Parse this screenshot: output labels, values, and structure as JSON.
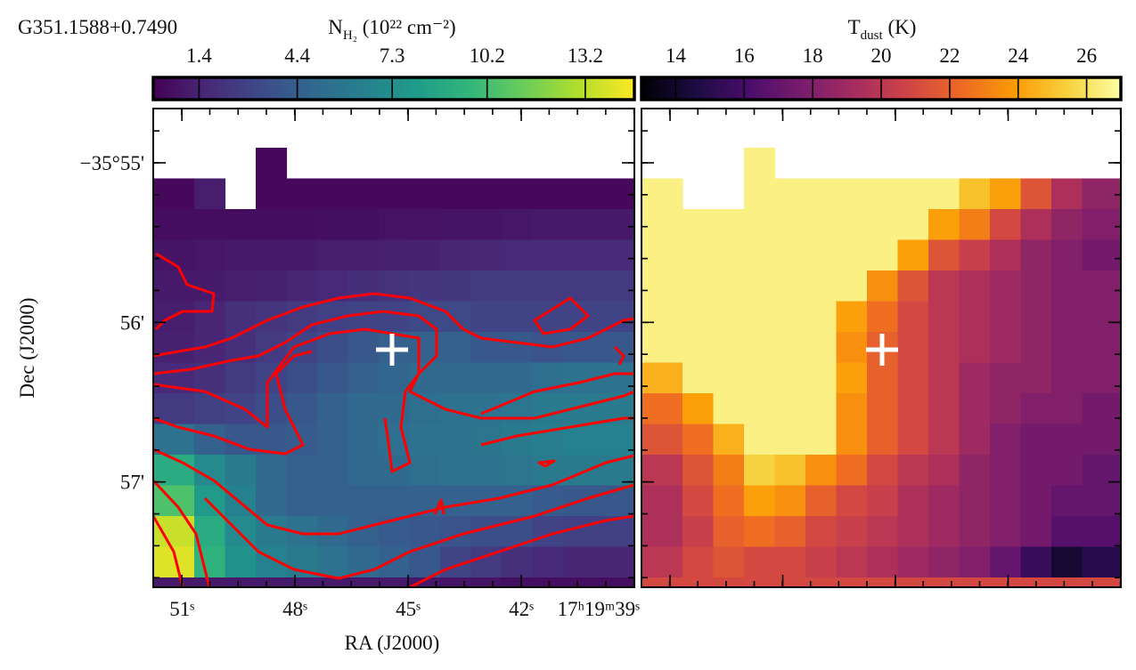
{
  "chart_data": [
    {
      "type": "heatmap",
      "title": "G351.1588+0.7490",
      "colorbar_label": {
        "base": "N",
        "sub": "H₂",
        "rest": " (10²² cm⁻²)"
      },
      "xlabel": "RA (J2000)",
      "ylabel": "Dec (J2000)",
      "xlim": [
        51.76,
        39
      ],
      "ylim": [
        57.66,
        54.66
      ],
      "xticks": [
        {
          "value": 51,
          "label": "51ˢ"
        },
        {
          "value": 48,
          "label": "48ˢ"
        },
        {
          "value": 45,
          "label": "45ˢ"
        },
        {
          "value": 42,
          "label": "42ˢ"
        },
        {
          "value": 39,
          "label": "17ʰ19ᵐ39ˢ"
        }
      ],
      "yticks": [
        {
          "value": 55,
          "label": "−35°55'"
        },
        {
          "value": 56,
          "label": "56'"
        },
        {
          "value": 57,
          "label": "57'"
        }
      ],
      "colormap": "viridis",
      "zlim": [
        0,
        14.7
      ],
      "zticks": [
        1.4,
        4.4,
        7.3,
        10.2,
        13.2
      ],
      "z": [
        [
          null,
          null,
          null,
          null,
          0.3,
          null,
          null,
          null,
          null,
          null,
          null,
          null,
          null,
          null,
          null,
          null,
          null
        ],
        [
          0.3,
          0.3,
          1.2,
          null,
          0.3,
          0.3,
          0.3,
          0.3,
          0.3,
          0.3,
          0.3,
          0.3,
          0.3,
          0.3,
          0.3,
          0.3,
          0.3
        ],
        [
          0.5,
          0.5,
          0.5,
          0.5,
          0.5,
          0.5,
          0.6,
          0.6,
          0.7,
          0.7,
          0.8,
          0.8,
          0.9,
          1,
          1,
          1,
          1
        ],
        [
          0.8,
          0.8,
          0.9,
          1,
          1,
          1.1,
          1.2,
          1.2,
          1.3,
          1.4,
          1.5,
          1.6,
          1.7,
          1.8,
          1.8,
          1.8,
          1.8
        ],
        [
          1,
          1,
          1.1,
          1.2,
          1.3,
          1.5,
          1.7,
          1.9,
          2.1,
          2.3,
          2.4,
          2.5,
          2.5,
          2.5,
          2.5,
          2.5,
          2.5
        ],
        [
          1.2,
          1.2,
          1.5,
          2,
          2.2,
          2.5,
          2.8,
          3,
          3,
          3.2,
          3.2,
          3,
          3,
          3,
          3,
          3,
          3
        ],
        [
          1.3,
          1.3,
          1.5,
          2,
          2.5,
          3,
          3.5,
          4,
          4.5,
          4.5,
          4.5,
          4,
          4,
          3.8,
          4,
          4,
          4
        ],
        [
          1.8,
          1.8,
          2,
          2.5,
          3,
          3.5,
          4,
          4.5,
          4.8,
          5,
          5,
          5,
          5,
          5.3,
          5.5,
          5.5,
          5.5
        ],
        [
          2.5,
          2.5,
          2.8,
          3,
          3.5,
          4,
          4.5,
          5,
          5,
          5.3,
          5.5,
          5.5,
          5.8,
          6,
          6,
          6,
          6
        ],
        [
          5.5,
          5.5,
          4.5,
          4,
          4,
          4.2,
          4.5,
          5,
          5.3,
          5.5,
          5.5,
          5.8,
          6,
          6.3,
          6.5,
          6.5,
          6.5
        ],
        [
          9,
          9,
          7,
          6,
          5,
          4.5,
          4.5,
          5,
          5,
          5.3,
          5.5,
          5.5,
          5.8,
          6,
          6,
          6,
          6
        ],
        [
          10.5,
          10.5,
          8,
          6.5,
          5,
          4.5,
          4.5,
          4.5,
          4.5,
          4.5,
          4.5,
          4.5,
          4.5,
          4.2,
          4,
          4,
          4
        ],
        [
          13.5,
          13.5,
          9,
          7,
          6,
          5.5,
          5,
          4.5,
          4.2,
          4,
          3.8,
          3.5,
          3.5,
          3,
          2.8,
          2.8,
          2.8
        ],
        [
          14,
          14,
          9.5,
          7.5,
          6.5,
          6,
          5.5,
          5,
          4.5,
          4,
          3,
          2.5,
          2,
          1.8,
          1.5,
          1.5,
          1.5
        ],
        [
          1,
          1,
          1,
          1,
          1,
          1,
          1,
          1,
          1,
          0.9,
          0.8,
          0.7,
          0.6,
          0.5,
          0.5,
          0.5,
          0.5
        ]
      ]
    },
    {
      "type": "heatmap",
      "colorbar_label": {
        "base": "T",
        "sub": "dust",
        "rest": " (K)"
      },
      "colormap": "inferno",
      "zlim": [
        13,
        27
      ],
      "zticks": [
        14,
        16,
        18,
        20,
        22,
        24,
        26
      ],
      "z": [
        [
          null,
          null,
          null,
          null,
          26.5,
          null,
          null,
          null,
          null,
          null,
          null,
          null,
          null,
          null,
          null,
          null,
          null
        ],
        [
          26.5,
          26.5,
          null,
          null,
          26.5,
          26.5,
          26.5,
          26.5,
          26.5,
          26.5,
          26.5,
          25,
          24,
          21.5,
          19.5,
          18.5,
          18.5
        ],
        [
          26.5,
          26.5,
          26.5,
          26.5,
          26.5,
          26.5,
          26.5,
          26.5,
          26.5,
          26.5,
          24,
          23,
          21,
          19.5,
          18.5,
          18,
          18
        ],
        [
          26.5,
          26.5,
          26.5,
          26.5,
          26.5,
          26.5,
          26.5,
          26.5,
          26.5,
          24,
          21.5,
          20.5,
          19.5,
          18.5,
          18,
          17.5,
          17.5
        ],
        [
          26.5,
          26.5,
          26.5,
          26.5,
          26.5,
          26.5,
          26.5,
          26.5,
          23.5,
          21.5,
          20,
          19.5,
          19,
          18.5,
          18,
          18,
          18
        ],
        [
          26.5,
          26.5,
          26.5,
          26.5,
          26.5,
          26.5,
          26.5,
          24,
          22.5,
          21,
          20,
          19.5,
          19,
          18.5,
          18,
          18,
          18
        ],
        [
          26.5,
          26.5,
          26.5,
          26.5,
          26.5,
          26.5,
          26.5,
          23.5,
          22,
          21,
          20,
          19.5,
          19,
          18.5,
          18,
          18,
          18
        ],
        [
          24.5,
          24.5,
          26.5,
          26.5,
          26.5,
          26.5,
          26.5,
          24,
          22,
          21,
          20,
          19,
          18.5,
          18.5,
          18,
          18,
          18
        ],
        [
          22.5,
          22.5,
          24,
          26.5,
          26.5,
          26.5,
          26.5,
          23.5,
          22,
          21,
          20,
          19,
          18.5,
          18,
          18,
          17.5,
          17.5
        ],
        [
          21.5,
          21.5,
          22.5,
          24.5,
          26.5,
          26.5,
          26.5,
          23.5,
          22,
          21,
          20,
          19,
          18,
          17.5,
          17.5,
          17.5,
          17.5
        ],
        [
          20,
          20,
          21.5,
          23,
          25.5,
          25,
          23.5,
          22.5,
          21,
          20,
          19.5,
          18.5,
          18,
          17.5,
          17.5,
          17,
          17
        ],
        [
          19.5,
          19.5,
          21,
          22.5,
          24,
          23.5,
          22,
          21,
          20.5,
          19.5,
          19,
          18.5,
          18,
          17.5,
          17,
          17,
          17
        ],
        [
          19.5,
          19.5,
          20.5,
          22,
          22.5,
          22,
          21,
          20.5,
          20,
          19.5,
          19,
          18.5,
          18,
          17.5,
          16.5,
          16.5,
          16.5
        ],
        [
          20,
          20,
          21,
          21.5,
          21,
          21,
          20.5,
          20,
          19.5,
          19,
          18.5,
          18,
          17,
          15.5,
          14.2,
          15,
          15
        ],
        [
          21,
          21,
          21,
          21,
          21,
          21,
          21,
          21,
          21,
          21,
          21,
          21,
          21,
          21,
          21,
          21,
          21
        ]
      ]
    }
  ]
}
